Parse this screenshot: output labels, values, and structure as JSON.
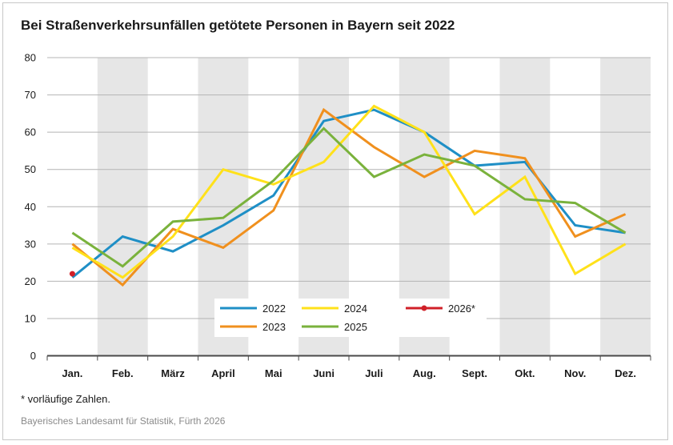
{
  "chart_data": {
    "type": "line",
    "title": "Bei Straßenverkehrsunfällen getötete Personen in Bayern seit 2022",
    "categories": [
      "Jan.",
      "Feb.",
      "März",
      "April",
      "Mai",
      "Juni",
      "Juli",
      "Aug.",
      "Sept.",
      "Okt.",
      "Nov.",
      "Dez."
    ],
    "ylim": [
      0,
      80
    ],
    "yticks": [
      0,
      10,
      20,
      30,
      40,
      50,
      60,
      70,
      80
    ],
    "grid": true,
    "legend_position": "bottom-center",
    "series": [
      {
        "name": "2022",
        "color": "#1f8fc6",
        "values": [
          21,
          32,
          28,
          35,
          43,
          63,
          66,
          60,
          51,
          52,
          35,
          33
        ]
      },
      {
        "name": "2023",
        "color": "#f0901e",
        "values": [
          30,
          19,
          34,
          29,
          39,
          66,
          56,
          48,
          55,
          53,
          32,
          38
        ]
      },
      {
        "name": "2024",
        "color": "#ffe11a",
        "values": [
          29,
          21,
          32,
          50,
          46,
          52,
          67,
          60,
          38,
          48,
          22,
          30
        ]
      },
      {
        "name": "2025",
        "color": "#7ab23c",
        "values": [
          33,
          24,
          36,
          37,
          47,
          61,
          48,
          54,
          51,
          42,
          41,
          33
        ]
      },
      {
        "name": "2026*",
        "color": "#d02028",
        "values": [
          22,
          null,
          null,
          null,
          null,
          null,
          null,
          null,
          null,
          null,
          null,
          null
        ]
      }
    ]
  },
  "footnote": "* vorläufige Zahlen.",
  "source": "Bayerisches Landesamt für Statistik, Fürth 2026"
}
